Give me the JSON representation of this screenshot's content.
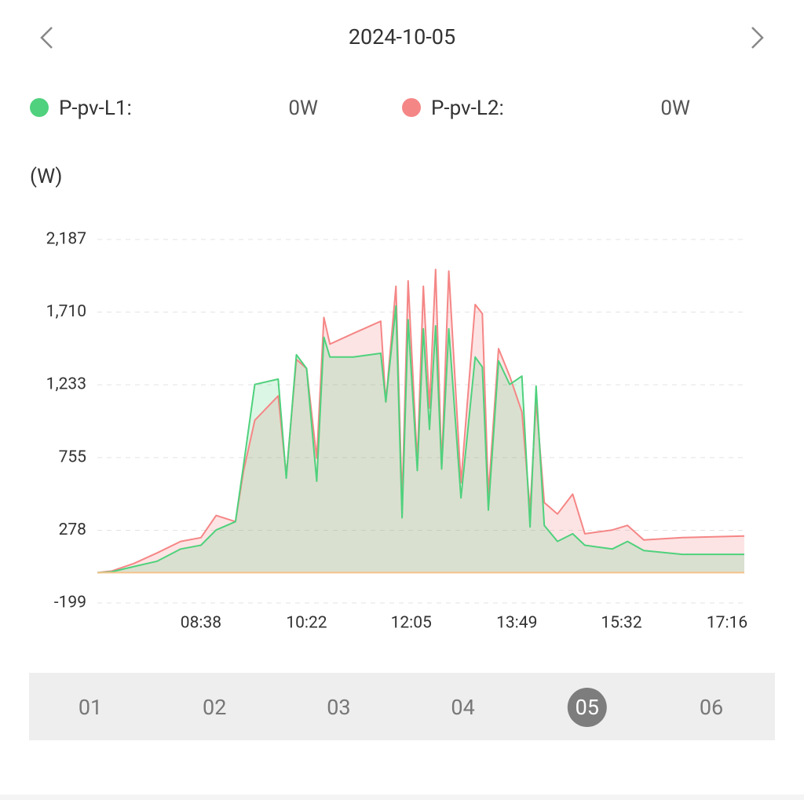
{
  "header": {
    "date": "2024-10-05"
  },
  "readouts": [
    "0W",
    "0W"
  ],
  "tabs": {
    "items": [
      "01",
      "02",
      "03",
      "04",
      "05",
      "06"
    ],
    "selected": 4
  },
  "chart_data": {
    "type": "area",
    "y_label": "(W)",
    "x": [
      416,
      430,
      452,
      475,
      498,
      518,
      533,
      552,
      560,
      571,
      594,
      602,
      612,
      622,
      632,
      639,
      645,
      668,
      695,
      700,
      710,
      716,
      722,
      731,
      737,
      743,
      749,
      755,
      762,
      774,
      788,
      795,
      801,
      811,
      822,
      834,
      842,
      848,
      856,
      869,
      884,
      896,
      923,
      938,
      954,
      992,
      1053
    ],
    "xlim": [
      416,
      1053
    ],
    "xticks": [
      {
        "value": 518,
        "label": "08:38"
      },
      {
        "value": 622,
        "label": "10:22"
      },
      {
        "value": 725,
        "label": "12:05"
      },
      {
        "value": 829,
        "label": "13:49"
      },
      {
        "value": 932,
        "label": "15:32"
      },
      {
        "value": 1036,
        "label": "17:16"
      }
    ],
    "ylim": [
      -199,
      2187
    ],
    "yticks": [
      -199,
      278,
      755,
      {
        "value": 1233,
        "label": "1,233"
      },
      {
        "value": 1710,
        "label": "1,710"
      },
      {
        "value": 2187,
        "label": "2,187"
      }
    ],
    "grid": true,
    "series": [
      {
        "name": "P-pv-L1:",
        "color": "#4fd17d",
        "values": [
          0,
          5,
          40,
          75,
          155,
          180,
          280,
          335,
          710,
          1235,
          1270,
          620,
          1430,
          1340,
          600,
          1545,
          1415,
          1415,
          1440,
          1120,
          1750,
          360,
          1660,
          670,
          1600,
          940,
          1620,
          680,
          1600,
          490,
          1415,
          1350,
          410,
          1390,
          1235,
          1290,
          300,
          1225,
          310,
          205,
          255,
          180,
          155,
          205,
          145,
          120,
          120
        ]
      },
      {
        "name": "P-pv-L2:",
        "color": "#f58686",
        "values": [
          0,
          10,
          60,
          130,
          205,
          230,
          375,
          335,
          670,
          1000,
          1160,
          640,
          1400,
          1340,
          750,
          1675,
          1500,
          1570,
          1650,
          1120,
          1880,
          460,
          1915,
          720,
          1880,
          1080,
          1990,
          700,
          1980,
          590,
          1760,
          1700,
          515,
          1470,
          1290,
          1055,
          410,
          1130,
          460,
          385,
          515,
          255,
          280,
          310,
          215,
          230,
          240
        ]
      }
    ]
  }
}
